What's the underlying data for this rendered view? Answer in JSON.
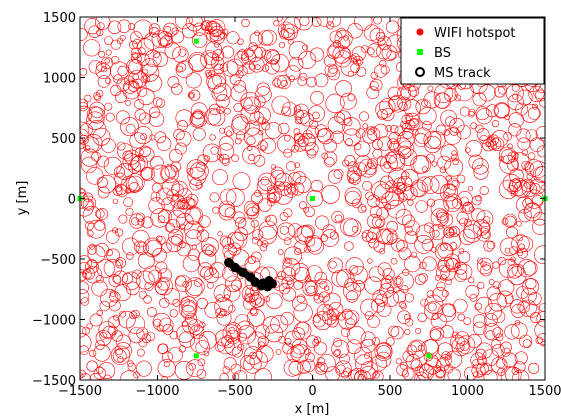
{
  "chart_data": {
    "type": "scatter",
    "title": "",
    "xlabel": "x [m]",
    "ylabel": "y [m]",
    "xlim": [
      -1500,
      1500
    ],
    "ylim": [
      -1500,
      1500
    ],
    "x_ticks": [
      -1500,
      -1000,
      -500,
      0,
      500,
      1000,
      1500
    ],
    "x_tick_labels": [
      "−1500",
      "−1000",
      "−500",
      "0",
      "500",
      "1000",
      "1500"
    ],
    "y_ticks": [
      -1500,
      -1000,
      -500,
      0,
      500,
      1000,
      1500
    ],
    "y_tick_labels": [
      "−1500",
      "−1000",
      "−500",
      "0",
      "500",
      "1000",
      "1500"
    ],
    "grid": false,
    "legend_position": "top-right",
    "legend": [
      {
        "label": "WIFI hotspot",
        "marker": "filled-dot",
        "color": "#ff0000"
      },
      {
        "label": "BS",
        "marker": "filled-square",
        "color": "#00ff00"
      },
      {
        "label": "MS track",
        "marker": "open-circle",
        "color": "#000000"
      }
    ],
    "series": [
      {
        "name": "BS",
        "color": "#00ff00",
        "points": [
          {
            "x": -750,
            "y": 1300
          },
          {
            "x": -1500,
            "y": 0
          },
          {
            "x": 0,
            "y": 0
          },
          {
            "x": 1500,
            "y": 0
          },
          {
            "x": -750,
            "y": -1300
          },
          {
            "x": 750,
            "y": -1300
          }
        ]
      },
      {
        "name": "MS track",
        "color": "#000000",
        "points": [
          {
            "x": -540,
            "y": -530
          },
          {
            "x": -500,
            "y": -570
          },
          {
            "x": -450,
            "y": -610
          },
          {
            "x": -400,
            "y": -650
          },
          {
            "x": -370,
            "y": -690
          },
          {
            "x": -330,
            "y": -720
          },
          {
            "x": -290,
            "y": -730
          },
          {
            "x": -260,
            "y": -705
          },
          {
            "x": -280,
            "y": -680
          },
          {
            "x": -320,
            "y": -700
          }
        ]
      }
    ],
    "hotspots": {
      "name": "WIFI hotspot",
      "color": "#ff0000",
      "count": 1600,
      "radius_range": [
        15,
        60
      ]
    }
  }
}
